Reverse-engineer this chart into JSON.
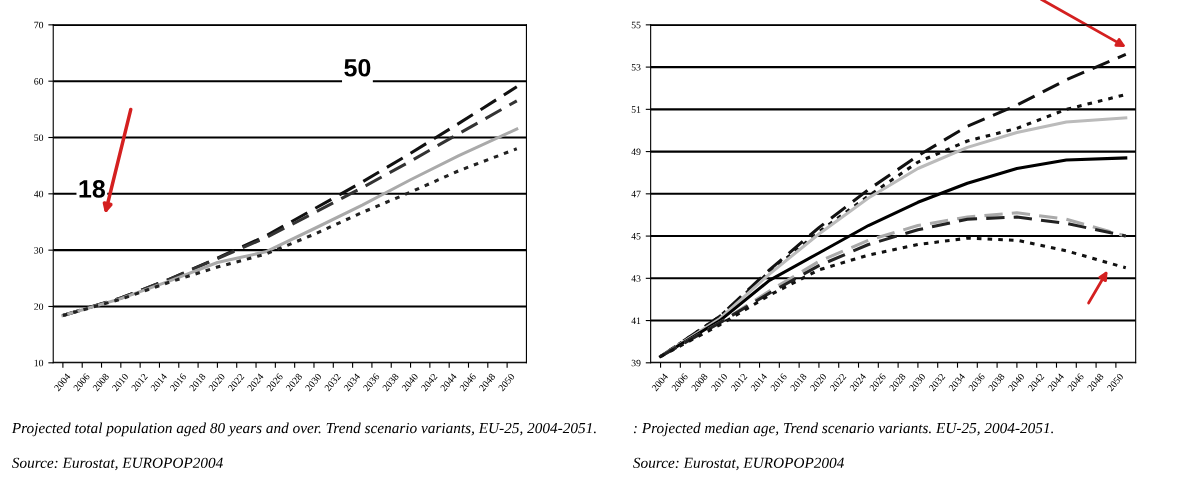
{
  "chart_data": [
    {
      "type": "line",
      "x": [
        2004,
        2010,
        2015,
        2020,
        2025,
        2030,
        2035,
        2040,
        2045,
        2051
      ],
      "xlim": [
        2003,
        2052
      ],
      "xticks": [
        2004,
        2006,
        2008,
        2010,
        2012,
        2014,
        2016,
        2018,
        2020,
        2022,
        2024,
        2026,
        2028,
        2030,
        2032,
        2034,
        2036,
        2038,
        2040,
        2042,
        2044,
        2046,
        2048,
        2050
      ],
      "ylim": [
        10,
        70
      ],
      "yticks": [
        10,
        20,
        30,
        40,
        50,
        60,
        70
      ],
      "grid": "y",
      "legend": false,
      "series": [
        {
          "color": "#111111",
          "line_style": "dashed",
          "values": [
            18.4,
            21.5,
            24.8,
            28.6,
            32.5,
            37.3,
            42.1,
            47.2,
            52.5,
            59
          ]
        },
        {
          "color": "#333333",
          "line_style": "dashed",
          "values": [
            18.4,
            21.5,
            24.8,
            28.5,
            32.2,
            36.6,
            41.1,
            45.8,
            50.7,
            56.5
          ]
        },
        {
          "color": "#aaaaaa",
          "line_style": "solid",
          "values": [
            18.4,
            21.4,
            24.5,
            27.8,
            29.7,
            33.8,
            38.0,
            42.5,
            46.8,
            51.5
          ]
        },
        {
          "color": "#222222",
          "line_style": "dotted",
          "values": [
            18.4,
            21.3,
            24.3,
            27.0,
            29.3,
            32.8,
            36.7,
            40.3,
            44.1,
            48.0
          ]
        }
      ],
      "annotations": [
        {
          "text": "18",
          "x": 2007,
          "y": 40.5
        },
        {
          "text": "50",
          "x": 2034.5,
          "y": 62
        },
        "Projected total population aged 80 years and over. Trend scenario variants, EU-25, 2004-2051.",
        "Source: Eurostat, EUROPOP2004"
      ]
    },
    {
      "type": "line",
      "x": [
        2004,
        2010,
        2015,
        2020,
        2025,
        2030,
        2035,
        2040,
        2045,
        2051
      ],
      "xlim": [
        2003,
        2052
      ],
      "xticks": [
        2004,
        2006,
        2008,
        2010,
        2012,
        2014,
        2016,
        2018,
        2020,
        2022,
        2024,
        2026,
        2028,
        2030,
        2032,
        2034,
        2036,
        2038,
        2040,
        2042,
        2044,
        2046,
        2048,
        2050
      ],
      "ylim": [
        39,
        55
      ],
      "yticks": [
        39,
        41,
        43,
        45,
        47,
        49,
        51,
        53,
        55
      ],
      "grid": "y",
      "legend": false,
      "series": [
        {
          "color": "#111111",
          "line_style": "dashed",
          "values": [
            39.3,
            41.2,
            43.4,
            45.4,
            47.2,
            48.8,
            50.2,
            51.2,
            52.4,
            53.6
          ]
        },
        {
          "color": "#111111",
          "line_style": "dotted",
          "values": [
            39.3,
            41.2,
            43.3,
            45.2,
            46.9,
            48.5,
            49.5,
            50.1,
            51.0,
            51.7
          ]
        },
        {
          "color": "#bbbbbb",
          "line_style": "solid",
          "values": [
            39.3,
            41.1,
            43.2,
            45.1,
            46.8,
            48.2,
            49.2,
            49.9,
            50.4,
            50.6
          ]
        },
        {
          "color": "#000000",
          "line_style": "solid",
          "values": [
            39.3,
            41.0,
            42.9,
            44.2,
            45.5,
            46.6,
            47.5,
            48.2,
            48.6,
            48.7
          ]
        },
        {
          "color": "#aaaaaa",
          "line_style": "dashed",
          "values": [
            39.3,
            40.9,
            42.4,
            43.8,
            44.8,
            45.5,
            45.9,
            46.1,
            45.8,
            45.0
          ]
        },
        {
          "color": "#222222",
          "line_style": "dashed",
          "values": [
            39.3,
            40.9,
            42.3,
            43.6,
            44.6,
            45.3,
            45.8,
            45.9,
            45.6,
            45.0
          ]
        },
        {
          "color": "#111111",
          "line_style": "dotted",
          "values": [
            39.3,
            40.8,
            42.2,
            43.4,
            44.1,
            44.6,
            44.9,
            44.8,
            44.3,
            43.5
          ]
        }
      ],
      "annotations": [
        ": Projected median age, Trend scenario variants. EU-25, 2004-2051.",
        "Source: Eurostat, EUROPOP2004"
      ]
    }
  ]
}
